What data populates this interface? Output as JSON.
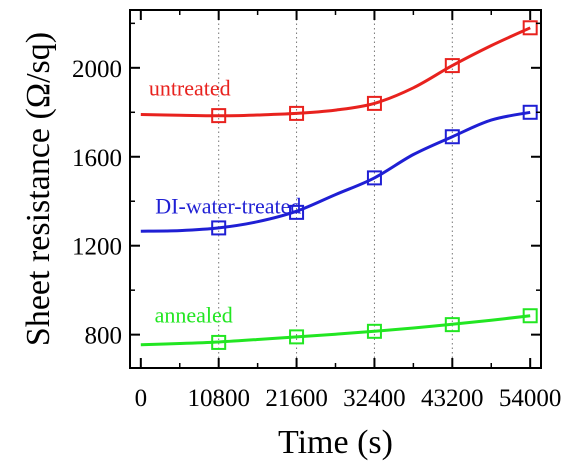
{
  "chart_data": {
    "type": "line",
    "title": "",
    "xlabel": "Time (s)",
    "ylabel": "Sheet resistance (Ω/sq)",
    "x": [
      0,
      10800,
      21600,
      32400,
      43200,
      54000
    ],
    "xlim": [
      -1500,
      55500
    ],
    "ylim": [
      650,
      2260
    ],
    "xticks": [
      0,
      10800,
      21600,
      32400,
      43200,
      54000
    ],
    "yticks": [
      800,
      1200,
      1600,
      2000
    ],
    "grid": "vertical dotted",
    "series": [
      {
        "name": "untreated",
        "color": "#e8221e",
        "x": [
          10800,
          21600,
          32400,
          43200,
          54000
        ],
        "values": [
          1785,
          1795,
          1840,
          2010,
          2180
        ],
        "curve_x": [
          0,
          5400,
          10800,
          16200,
          21600,
          27000,
          32400,
          37800,
          43200,
          48600,
          54000
        ],
        "curve_y": [
          1790,
          1787,
          1784,
          1788,
          1795,
          1810,
          1840,
          1910,
          2010,
          2100,
          2180
        ]
      },
      {
        "name": "DI-water-treated",
        "color": "#1f1fd4",
        "x": [
          10800,
          21600,
          32400,
          43200,
          54000
        ],
        "values": [
          1280,
          1350,
          1505,
          1690,
          1800
        ],
        "curve_x": [
          0,
          5400,
          10800,
          16200,
          21600,
          27000,
          32400,
          37800,
          43200,
          48600,
          54000
        ],
        "curve_y": [
          1265,
          1268,
          1280,
          1308,
          1355,
          1430,
          1505,
          1610,
          1690,
          1765,
          1800
        ]
      },
      {
        "name": "annealed",
        "color": "#22e622",
        "x": [
          10800,
          21600,
          32400,
          43200,
          54000
        ],
        "values": [
          765,
          790,
          815,
          845,
          885
        ],
        "curve_x": [
          0,
          5400,
          10800,
          16200,
          21600,
          27000,
          32400,
          37800,
          43200,
          48600,
          54000
        ],
        "curve_y": [
          755,
          760,
          767,
          778,
          790,
          802,
          815,
          830,
          847,
          865,
          885
        ]
      }
    ]
  }
}
